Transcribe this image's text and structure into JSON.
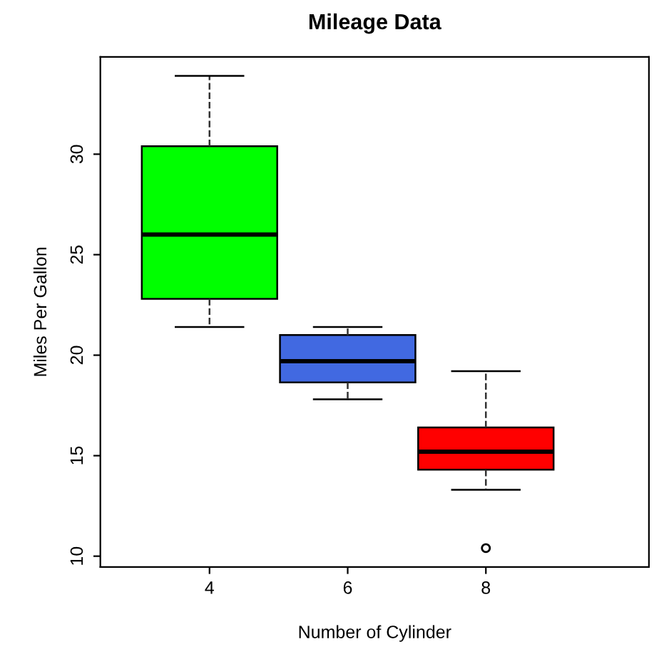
{
  "chart_data": {
    "type": "box",
    "title": "Mileage Data",
    "xlabel": "Number of Cylinder",
    "ylabel": "Miles Per Gallon",
    "categories": [
      "4",
      "6",
      "8"
    ],
    "colors": [
      "#00ff00",
      "#4169e1",
      "#ff0000"
    ],
    "boxes": [
      {
        "low": 21.4,
        "q1": 22.8,
        "median": 26.0,
        "q3": 30.4,
        "high": 33.9
      },
      {
        "low": 17.8,
        "q1": 18.65,
        "median": 19.7,
        "q3": 21.0,
        "high": 21.4
      },
      {
        "low": 13.3,
        "q1": 14.3,
        "median": 15.2,
        "q3": 16.4,
        "high": 19.2,
        "outliers": [
          10.4
        ]
      }
    ],
    "ylim": [
      9.46,
      34.84
    ],
    "yticks": [
      10,
      15,
      20,
      25,
      30
    ],
    "grid": false,
    "legend": false
  }
}
